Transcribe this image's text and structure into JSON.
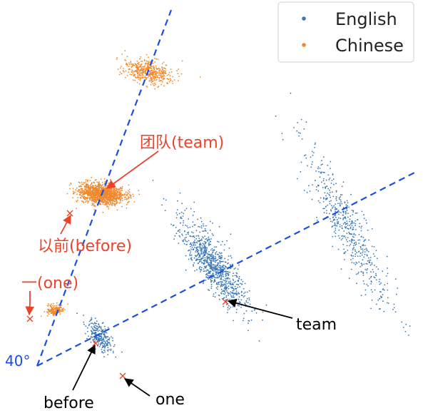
{
  "chart_data": {
    "type": "scatter",
    "legend": {
      "placement": "top-right",
      "entries": [
        {
          "name": "English",
          "color": "#3a78b4"
        },
        {
          "name": "Chinese",
          "color": "#f0882c"
        }
      ]
    },
    "series": [
      {
        "name": "English",
        "color": "#3a78b4",
        "clusters": [
          {
            "center": [
              140,
              472
            ],
            "count": 260,
            "angle_deg": 55,
            "sx": 26,
            "sy": 13
          },
          {
            "center": [
              300,
              372
            ],
            "count": 900,
            "angle_deg": 55,
            "sx": 78,
            "sy": 22
          },
          {
            "center": [
              485,
              315
            ],
            "count": 520,
            "angle_deg": 62,
            "sx": 120,
            "sy": 24
          }
        ]
      },
      {
        "name": "Chinese",
        "color": "#f0882c",
        "clusters": [
          {
            "center": [
              78,
              435
            ],
            "count": 170,
            "angle_deg": 0,
            "sx": 12,
            "sy": 8
          },
          {
            "center": [
              142,
              272
            ],
            "count": 1300,
            "angle_deg": 8,
            "sx": 32,
            "sy": 14
          },
          {
            "center": [
              208,
              100
            ],
            "count": 450,
            "angle_deg": 12,
            "sx": 34,
            "sy": 16
          }
        ]
      }
    ],
    "axes_lines": [
      {
        "from": [
          52,
          513
        ],
        "to": [
          240,
          14
        ],
        "color": "#1a4fe0",
        "style": "dashed"
      },
      {
        "from": [
          52,
          513
        ],
        "to": [
          585,
          240
        ],
        "color": "#1a4fe0",
        "style": "dashed"
      }
    ],
    "angle_label": {
      "text": "40°",
      "color": "#1a4fe0"
    },
    "markers": [
      {
        "x": 42,
        "y": 447,
        "series": "Chinese"
      },
      {
        "x": 98,
        "y": 299,
        "series": "Chinese"
      },
      {
        "x": 134,
        "y": 481,
        "series": "English"
      },
      {
        "x": 172,
        "y": 527,
        "series": "English"
      },
      {
        "x": 316,
        "y": 423,
        "series": "English"
      }
    ],
    "annotations": [
      {
        "text": "团队(team)",
        "color": "#e8442c"
      },
      {
        "text": "以前(before)",
        "color": "#e8442c"
      },
      {
        "text": "一(one)",
        "color": "#e8442c"
      },
      {
        "text": "team",
        "color": "#000000"
      },
      {
        "text": "before",
        "color": "#000000"
      },
      {
        "text": "one",
        "color": "#000000"
      }
    ]
  }
}
